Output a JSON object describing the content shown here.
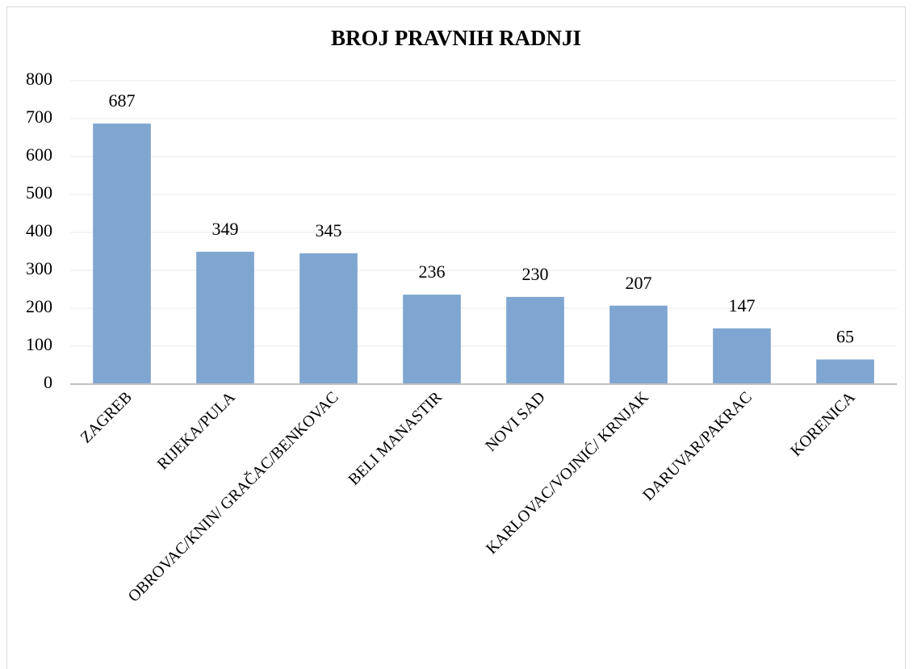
{
  "chart_data": {
    "type": "bar",
    "title": "BROJ PRAVNIH RADNJI",
    "categories": [
      "ZAGREB",
      "RIJEKA/PULA",
      "OBROVAC/KNIN/ GRAČAC/BENKOVAC",
      "BELI MANASTIR",
      "NOVI SAD",
      "KARLOVAC/VOJNIĆ/ KRNJAK",
      "DARUVAR/PAKRAC",
      "KORENICA"
    ],
    "values": [
      687,
      349,
      345,
      236,
      230,
      207,
      147,
      65
    ],
    "color": "#7fa6d1",
    "ylim": [
      0,
      800
    ],
    "yticks": [
      0,
      100,
      200,
      300,
      400,
      500,
      600,
      700,
      800
    ],
    "grid": true
  }
}
